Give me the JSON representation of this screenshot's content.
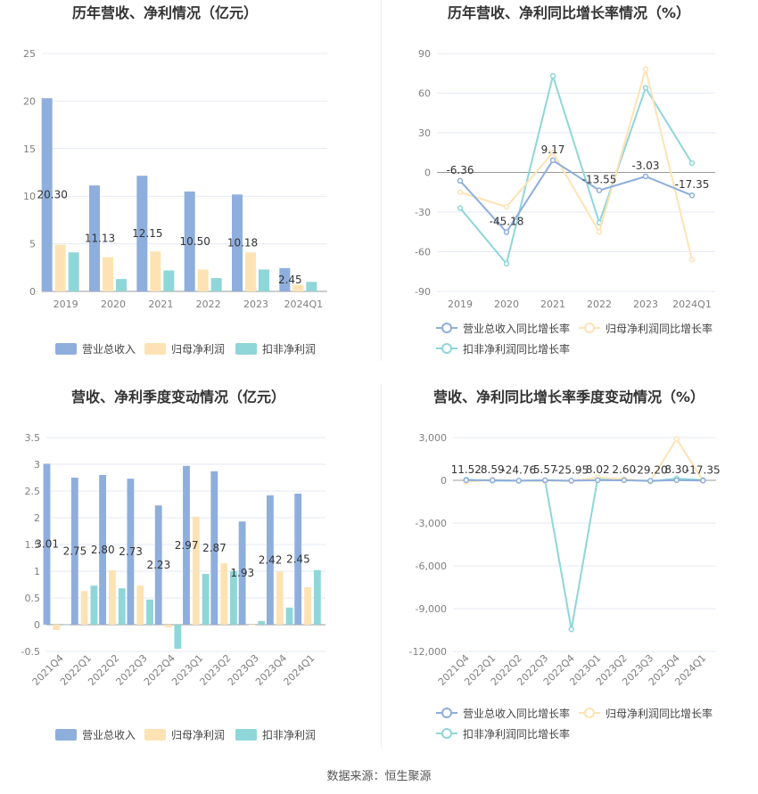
{
  "source_text": "数据来源：恒生聚源",
  "colors": {
    "revenue": "#8eaedc",
    "net_profit": "#fde3b4",
    "deducted": "#8fd6d8",
    "grid": "#e6e9f5",
    "axis": "#7f7f7f",
    "title": "#333333"
  },
  "chart_data": [
    {
      "id": "annual-amounts",
      "type": "bar",
      "title": "历年营收、净利情况（亿元）",
      "categories": [
        "2019",
        "2020",
        "2021",
        "2022",
        "2023",
        "2024Q1"
      ],
      "ylim": [
        0,
        25
      ],
      "yticks": [
        "0",
        "5",
        "10",
        "15",
        "20",
        "25"
      ],
      "grid": true,
      "legend_position": "bottom",
      "series": [
        {
          "name": "营业总收入",
          "values": [
            20.3,
            11.13,
            12.15,
            10.5,
            10.18,
            2.45
          ],
          "labels": [
            "20.30",
            "11.13",
            "12.15",
            "10.50",
            "10.18",
            "2.45"
          ]
        },
        {
          "name": "归母净利润",
          "values": [
            4.9,
            3.6,
            4.2,
            2.3,
            4.1,
            0.7
          ]
        },
        {
          "name": "扣非净利润",
          "values": [
            4.1,
            1.3,
            2.2,
            1.4,
            2.3,
            1.0
          ]
        }
      ]
    },
    {
      "id": "annual-growth",
      "type": "line",
      "title": "历年营收、净利同比增长率情况（%）",
      "categories": [
        "2019",
        "2020",
        "2021",
        "2022",
        "2023",
        "2024Q1"
      ],
      "ylim": [
        -90,
        90
      ],
      "yticks": [
        "-90",
        "-60",
        "-30",
        "0",
        "30",
        "60",
        "90"
      ],
      "grid": true,
      "legend_position": "bottom",
      "series": [
        {
          "name": "营业总收入同比增长率",
          "values": [
            -6.36,
            -45.18,
            9.17,
            -13.55,
            -3.03,
            -17.35
          ],
          "labels": [
            "-6.36",
            "-45.18",
            "9.17",
            "-13.55",
            "-3.03",
            "-17.35"
          ]
        },
        {
          "name": "归母净利润同比增长率",
          "values": [
            -15,
            -26,
            15,
            -45,
            78,
            -66
          ]
        },
        {
          "name": "扣非净利润同比增长率",
          "values": [
            -27,
            -69,
            73,
            -38,
            64,
            7
          ]
        }
      ]
    },
    {
      "id": "quarterly-amounts",
      "type": "bar",
      "title": "营收、净利季度变动情况（亿元）",
      "categories": [
        "2021Q4",
        "2022Q1",
        "2022Q2",
        "2022Q3",
        "2022Q4",
        "2023Q1",
        "2023Q2",
        "2023Q3",
        "2023Q4",
        "2024Q1"
      ],
      "ylim": [
        -0.5,
        3.5
      ],
      "yticks": [
        "-0.5",
        "0",
        "0.5",
        "1",
        "1.5",
        "2",
        "2.5",
        "3",
        "3.5"
      ],
      "grid": true,
      "legend_position": "bottom",
      "series": [
        {
          "name": "营业总收入",
          "values": [
            3.01,
            2.75,
            2.8,
            2.73,
            2.23,
            2.97,
            2.87,
            1.93,
            2.42,
            2.45
          ],
          "labels": [
            "3.01",
            "2.75",
            "2.80",
            "2.73",
            "2.23",
            "2.97",
            "2.87",
            "1.93",
            "2.42",
            "2.45"
          ]
        },
        {
          "name": "归母净利润",
          "values": [
            -0.1,
            0.63,
            1.02,
            0.73,
            -0.05,
            2.02,
            1.15,
            0.0,
            0.99,
            0.7
          ]
        },
        {
          "name": "扣非净利润",
          "values": [
            0.0,
            0.73,
            0.68,
            0.47,
            -0.45,
            0.95,
            1.0,
            0.07,
            0.32,
            1.02
          ]
        }
      ]
    },
    {
      "id": "quarterly-growth",
      "type": "line",
      "title": "营收、净利同比增长率季度变动情况（%）",
      "categories": [
        "2021Q4",
        "2022Q1",
        "2022Q2",
        "2022Q3",
        "2022Q4",
        "2023Q1",
        "2023Q2",
        "2023Q3",
        "2023Q4",
        "2024Q1"
      ],
      "ylim": [
        -12000,
        3000
      ],
      "yticks": [
        "-12,000",
        "-9,000",
        "-6,000",
        "-3,000",
        "0",
        "3,000"
      ],
      "grid": true,
      "legend_position": "bottom",
      "series": [
        {
          "name": "营业总收入同比增长率",
          "values": [
            11.52,
            8.59,
            -24.76,
            5.57,
            -25.95,
            8.02,
            2.6,
            -29.2,
            8.3,
            -17.35
          ],
          "labels": [
            "11.52",
            "8.59",
            "-24.76",
            "5.57",
            "-25.95",
            "8.02",
            "2.60",
            "-29.20",
            "8.30",
            "-17.35"
          ]
        },
        {
          "name": "归母净利润同比增长率",
          "values": [
            -100,
            40,
            -30,
            -20,
            -50,
            200,
            80,
            -60,
            2900,
            -30
          ]
        },
        {
          "name": "扣非净利润同比增长率",
          "values": [
            50,
            -20,
            -40,
            -30,
            -10450,
            150,
            70,
            -80,
            130,
            20
          ]
        }
      ]
    }
  ]
}
